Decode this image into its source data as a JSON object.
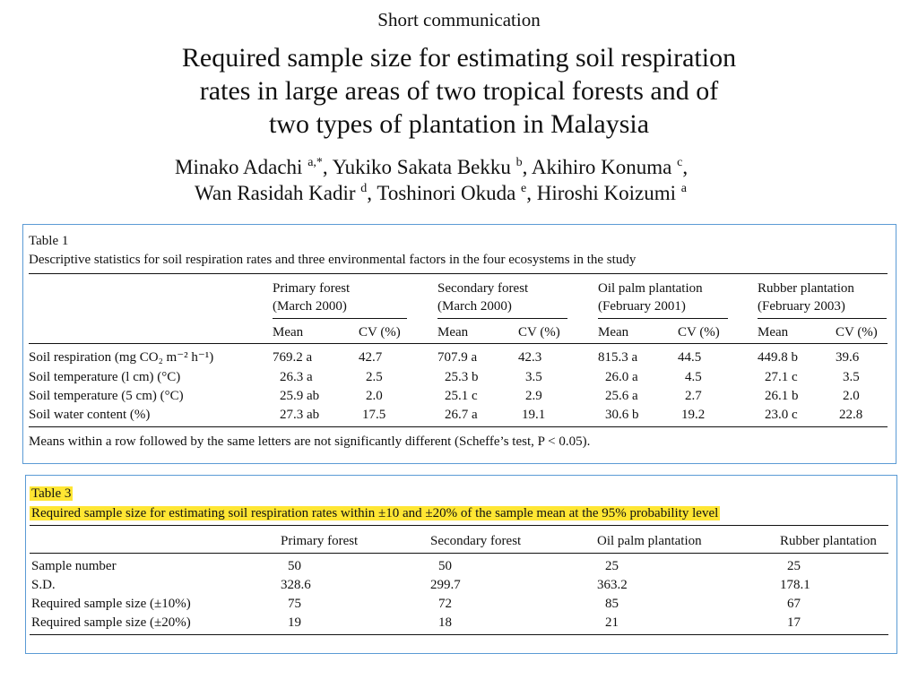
{
  "header": {
    "short_comm": "Short communication",
    "title_lines": [
      "Required sample size for estimating soil respiration",
      "rates in large areas of two tropical forests and of",
      "two types of plantation in Malaysia"
    ],
    "authors": [
      {
        "name": "Minako Adachi",
        "aff": "a,*"
      },
      {
        "name": "Yukiko Sakata Bekku",
        "aff": "b"
      },
      {
        "name": "Akihiro Konuma",
        "aff": "c"
      },
      {
        "name": "Wan Rasidah Kadir",
        "aff": "d"
      },
      {
        "name": "Toshinori Okuda",
        "aff": "e"
      },
      {
        "name": "Hiroshi Koizumi",
        "aff": "a"
      }
    ]
  },
  "table1": {
    "label": "Table 1",
    "caption": "Descriptive statistics for soil respiration rates and three environmental factors in the four ecosystems in the study",
    "groups": [
      {
        "name": "Primary forest",
        "date": "(March 2000)"
      },
      {
        "name": "Secondary forest",
        "date": "(March 2000)"
      },
      {
        "name": "Oil palm plantation",
        "date": "(February 2001)"
      },
      {
        "name": "Rubber plantation",
        "date": "(February 2003)"
      }
    ],
    "subheaders": [
      "Mean",
      "CV (%)"
    ],
    "rows": [
      {
        "label": "Soil respiration (mg CO₂ m⁻² h⁻¹)",
        "cells": [
          "769.2 a",
          "42.7",
          "707.9 a",
          "42.3",
          "815.3 a",
          "44.5",
          "449.8 b",
          "39.6"
        ]
      },
      {
        "label": "Soil temperature (l cm) (°C)",
        "cells": [
          "26.3 a",
          "2.5",
          "25.3 b",
          "3.5",
          "26.0 a",
          "4.5",
          "27.1 c",
          "3.5"
        ]
      },
      {
        "label": "Soil temperature (5 cm) (°C)",
        "cells": [
          "25.9 ab",
          "2.0",
          "25.1 c",
          "2.9",
          "25.6 a",
          "2.7",
          "26.1 b",
          "2.0"
        ]
      },
      {
        "label": "Soil water content (%)",
        "cells": [
          "27.3 ab",
          "17.5",
          "26.7 a",
          "19.1",
          "30.6 b",
          "19.2",
          "23.0 c",
          "22.8"
        ]
      }
    ],
    "footnote": "Means within a row followed by the same letters are not significantly different (Scheffe’s test, P < 0.05)."
  },
  "table3": {
    "label": "Table 3",
    "caption": "Required sample size for estimating soil respiration rates within ±10 and ±20% of the sample mean at the 95% probability level",
    "highlight_color": "#ffe633",
    "columns": [
      "Primary forest",
      "Secondary forest",
      "Oil palm plantation",
      "Rubber plantation"
    ],
    "rows": [
      {
        "label": "Sample number",
        "cells": [
          "50",
          "50",
          "25",
          "25"
        ]
      },
      {
        "label": "S.D.",
        "cells": [
          "328.6",
          "299.7",
          "363.2",
          "178.1"
        ]
      },
      {
        "label": "Required sample size (±10%)",
        "cells": [
          "75",
          "72",
          "85",
          "67"
        ]
      },
      {
        "label": "Required sample size (±20%)",
        "cells": [
          "19",
          "18",
          "21",
          "17"
        ]
      }
    ]
  },
  "colors": {
    "box_border": "#5b9bd5"
  }
}
